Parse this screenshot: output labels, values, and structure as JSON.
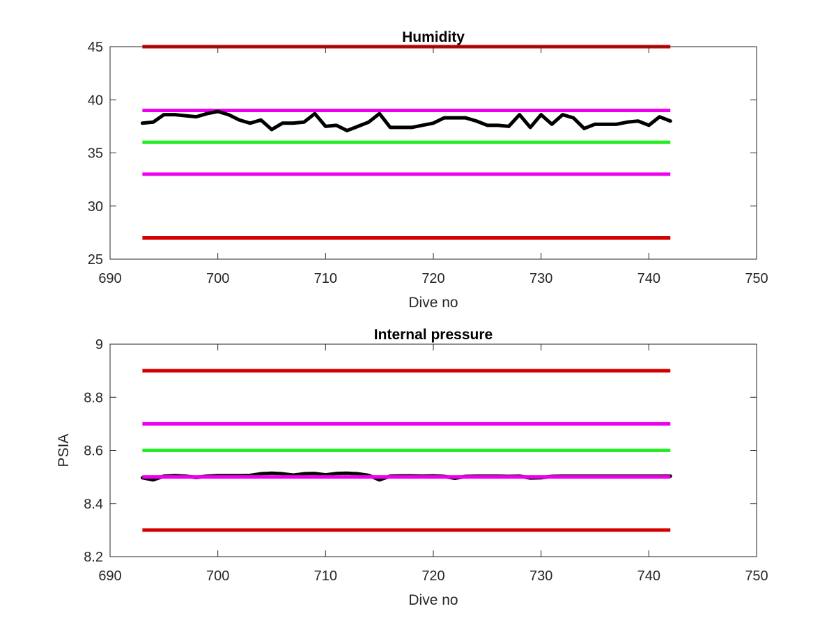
{
  "chart_data": [
    {
      "type": "line",
      "title": "Humidity",
      "xlabel": "Dive no",
      "ylabel": "",
      "xlim": [
        690,
        750
      ],
      "ylim": [
        25,
        45
      ],
      "xticks": [
        690,
        700,
        710,
        720,
        730,
        740,
        750
      ],
      "yticks": [
        25,
        30,
        35,
        40,
        45
      ],
      "grid": false,
      "threshold_lines": [
        {
          "y": 45,
          "x": [
            693,
            742
          ],
          "color": "#d40000"
        },
        {
          "y": 39,
          "x": [
            693,
            742
          ],
          "color": "#ee00ee"
        },
        {
          "y": 36,
          "x": [
            693,
            742
          ],
          "color": "#22ee22"
        },
        {
          "y": 33,
          "x": [
            693,
            742
          ],
          "color": "#ee00ee"
        },
        {
          "y": 27,
          "x": [
            693,
            742
          ],
          "color": "#d40000"
        }
      ],
      "series": [
        {
          "color": "#000000",
          "x": [
            693,
            694,
            695,
            696,
            697,
            698,
            699,
            700,
            701,
            702,
            703,
            704,
            705,
            706,
            707,
            708,
            709,
            710,
            711,
            712,
            713,
            714,
            715,
            716,
            717,
            718,
            719,
            720,
            721,
            722,
            723,
            724,
            725,
            726,
            727,
            728,
            729,
            730,
            731,
            732,
            733,
            734,
            735,
            736,
            737,
            738,
            739,
            740,
            741,
            742
          ],
          "values": [
            37.8,
            37.9,
            38.6,
            38.6,
            38.5,
            38.4,
            38.7,
            38.9,
            38.6,
            38.1,
            37.8,
            38.1,
            37.2,
            37.8,
            37.8,
            37.9,
            38.7,
            37.5,
            37.6,
            37.1,
            37.5,
            37.9,
            38.7,
            37.4,
            37.4,
            37.4,
            37.6,
            37.8,
            38.3,
            38.3,
            38.3,
            38.0,
            37.6,
            37.6,
            37.5,
            38.6,
            37.4,
            38.6,
            37.7,
            38.6,
            38.3,
            37.3,
            37.7,
            37.7,
            37.7,
            37.9,
            38.0,
            37.6,
            38.4,
            38.0
          ]
        }
      ]
    },
    {
      "type": "line",
      "title": "Internal pressure",
      "xlabel": "Dive no",
      "ylabel": "PSIA",
      "xlim": [
        690,
        750
      ],
      "ylim": [
        8.2,
        9.0
      ],
      "xticks": [
        690,
        700,
        710,
        720,
        730,
        740,
        750
      ],
      "yticks": [
        8.2,
        8.4,
        8.6,
        8.8,
        9.0
      ],
      "ytick_labels": [
        "8.2",
        "8.4",
        "8.6",
        "8.8",
        "9"
      ],
      "grid": false,
      "threshold_lines": [
        {
          "y": 8.9,
          "x": [
            693,
            742
          ],
          "color": "#d40000"
        },
        {
          "y": 8.7,
          "x": [
            693,
            742
          ],
          "color": "#ee00ee"
        },
        {
          "y": 8.6,
          "x": [
            693,
            742
          ],
          "color": "#22ee22"
        },
        {
          "y": 8.3,
          "x": [
            693,
            742
          ],
          "color": "#d40000"
        }
      ],
      "series": [
        {
          "color": "#000000",
          "x": [
            693,
            694,
            695,
            696,
            697,
            698,
            699,
            700,
            701,
            702,
            703,
            704,
            705,
            706,
            707,
            708,
            709,
            710,
            711,
            712,
            713,
            714,
            715,
            716,
            717,
            718,
            719,
            720,
            721,
            722,
            723,
            724,
            725,
            726,
            727,
            728,
            729,
            730,
            731,
            732,
            733,
            734,
            735,
            736,
            737,
            738,
            739,
            740,
            741,
            742
          ],
          "values": [
            8.497,
            8.489,
            8.503,
            8.505,
            8.503,
            8.498,
            8.503,
            8.505,
            8.505,
            8.505,
            8.506,
            8.512,
            8.514,
            8.512,
            8.507,
            8.512,
            8.513,
            8.508,
            8.513,
            8.514,
            8.512,
            8.506,
            8.489,
            8.503,
            8.504,
            8.504,
            8.503,
            8.504,
            8.502,
            8.495,
            8.502,
            8.503,
            8.503,
            8.503,
            8.502,
            8.503,
            8.496,
            8.497,
            8.502,
            8.503,
            8.503,
            8.503,
            8.503,
            8.503,
            8.503,
            8.503,
            8.503,
            8.503,
            8.503,
            8.503
          ]
        }
      ],
      "overlay_lines": [
        {
          "y": 8.5,
          "x": [
            693,
            742
          ],
          "color": "#ee00ee"
        }
      ]
    }
  ]
}
